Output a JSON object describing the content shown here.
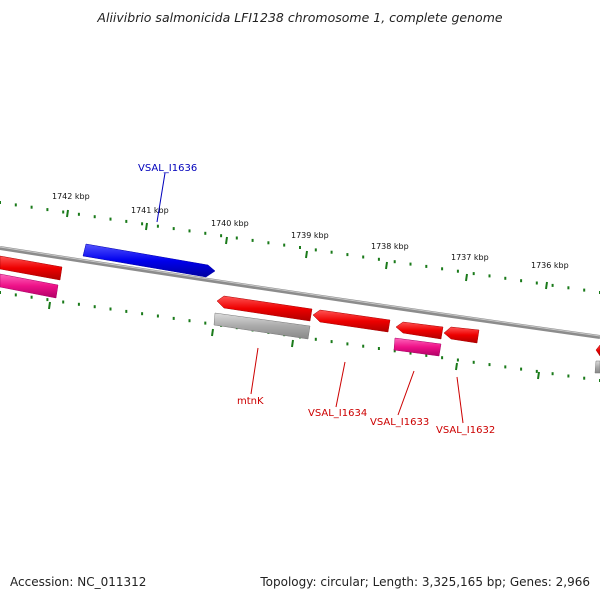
{
  "title": "Aliivibrio salmonicida LFI1238 chromosome 1, complete genome",
  "footer": {
    "accession": "Accession: NC_011312",
    "summary": "Topology: circular; Length: 3,325,165 bp; Genes: 2,966"
  },
  "colors": {
    "backbone": "#808080",
    "tick": "#1a7a1a",
    "forward_strand": "#0000ee",
    "reverse_strand": "#ee0000",
    "rna": "#ee1188",
    "pseudo": "#aaaaaa",
    "label_blue": "#0000bb",
    "label_red": "#cc0000"
  },
  "scale_ticks": [
    "1742 kbp",
    "1741 kbp",
    "1740 kbp",
    "1739 kbp",
    "1738 kbp",
    "1737 kbp",
    "1736 kbp"
  ],
  "gene_labels": {
    "vsal_i1636": "VSAL_I1636",
    "mtnk": "mtnK",
    "vsal_i1634": "VSAL_I1634",
    "vsal_i1633": "VSAL_I1633",
    "vsal_i1632": "VSAL_I1632"
  }
}
